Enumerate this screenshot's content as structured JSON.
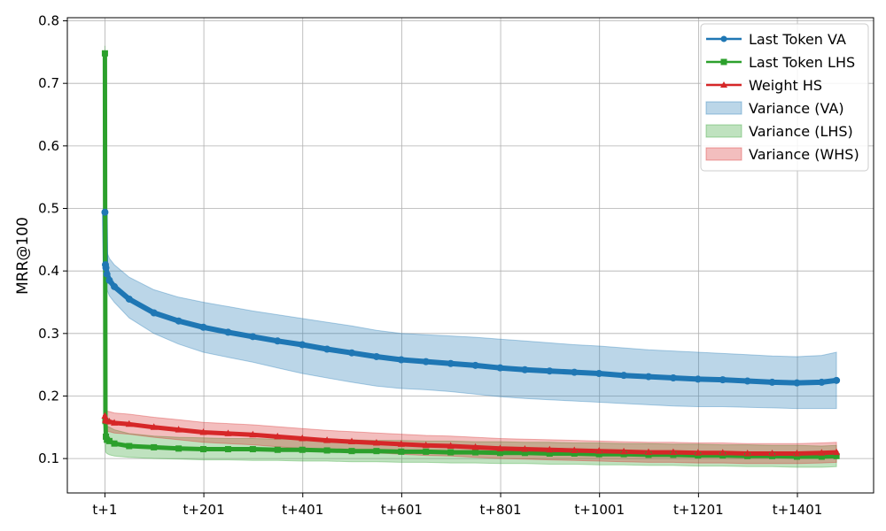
{
  "chart_data": {
    "type": "line",
    "title": "",
    "xlabel": "",
    "ylabel": "MRR@100",
    "x_ticks": [
      "t+1",
      "t+201",
      "t+401",
      "t+601",
      "t+801",
      "t+1001",
      "t+1201",
      "t+1401"
    ],
    "x_tick_values": [
      1,
      201,
      401,
      601,
      801,
      1001,
      1201,
      1401
    ],
    "xlim": [
      -75,
      1555
    ],
    "ylim": [
      0.045,
      0.805
    ],
    "y_ticks": [
      0.1,
      0.2,
      0.3,
      0.4,
      0.5,
      0.6,
      0.7,
      0.8
    ],
    "grid": true,
    "legend_position": "top-right",
    "x": [
      1,
      2,
      3,
      5,
      10,
      20,
      50,
      100,
      150,
      200,
      250,
      300,
      350,
      400,
      450,
      500,
      550,
      600,
      650,
      700,
      750,
      800,
      850,
      900,
      950,
      1000,
      1050,
      1100,
      1150,
      1200,
      1250,
      1300,
      1350,
      1400,
      1450,
      1480
    ],
    "series": [
      {
        "name": "Last Token VA",
        "color": "#1f77b4",
        "marker": "circle",
        "values": [
          0.494,
          0.41,
          0.405,
          0.395,
          0.385,
          0.375,
          0.355,
          0.333,
          0.32,
          0.31,
          0.302,
          0.295,
          0.288,
          0.282,
          0.275,
          0.269,
          0.263,
          0.258,
          0.255,
          0.252,
          0.249,
          0.245,
          0.242,
          0.24,
          0.238,
          0.236,
          0.233,
          0.231,
          0.229,
          0.227,
          0.226,
          0.224,
          0.222,
          0.221,
          0.222,
          0.225
        ],
        "band_name": "Variance (VA)",
        "band_color": "#1f77b4",
        "band_lower": [
          0.46,
          0.39,
          0.385,
          0.37,
          0.36,
          0.35,
          0.325,
          0.3,
          0.283,
          0.27,
          0.262,
          0.254,
          0.245,
          0.236,
          0.229,
          0.222,
          0.216,
          0.212,
          0.21,
          0.207,
          0.203,
          0.199,
          0.196,
          0.194,
          0.192,
          0.19,
          0.188,
          0.186,
          0.184,
          0.183,
          0.183,
          0.182,
          0.181,
          0.18,
          0.18,
          0.18
        ],
        "band_upper": [
          0.5,
          0.45,
          0.44,
          0.43,
          0.42,
          0.41,
          0.39,
          0.37,
          0.358,
          0.35,
          0.343,
          0.336,
          0.33,
          0.324,
          0.318,
          0.312,
          0.305,
          0.3,
          0.298,
          0.296,
          0.294,
          0.291,
          0.288,
          0.285,
          0.282,
          0.28,
          0.277,
          0.274,
          0.272,
          0.27,
          0.268,
          0.266,
          0.264,
          0.263,
          0.265,
          0.27
        ]
      },
      {
        "name": "Last Token LHS",
        "color": "#2ca02c",
        "marker": "square",
        "values": [
          0.748,
          0.16,
          0.135,
          0.13,
          0.128,
          0.124,
          0.12,
          0.118,
          0.116,
          0.115,
          0.115,
          0.115,
          0.114,
          0.114,
          0.113,
          0.112,
          0.112,
          0.111,
          0.111,
          0.11,
          0.11,
          0.109,
          0.109,
          0.108,
          0.108,
          0.107,
          0.107,
          0.106,
          0.106,
          0.105,
          0.105,
          0.104,
          0.104,
          0.103,
          0.103,
          0.104
        ],
        "band_name": "Variance (LHS)",
        "band_color": "#2ca02c",
        "band_lower": [
          0.73,
          0.12,
          0.11,
          0.108,
          0.106,
          0.104,
          0.102,
          0.1,
          0.099,
          0.098,
          0.098,
          0.097,
          0.097,
          0.096,
          0.096,
          0.095,
          0.095,
          0.094,
          0.094,
          0.093,
          0.093,
          0.092,
          0.092,
          0.091,
          0.091,
          0.09,
          0.09,
          0.089,
          0.089,
          0.088,
          0.088,
          0.087,
          0.087,
          0.086,
          0.086,
          0.087
        ],
        "band_upper": [
          0.76,
          0.2,
          0.16,
          0.152,
          0.15,
          0.146,
          0.14,
          0.136,
          0.134,
          0.133,
          0.132,
          0.132,
          0.131,
          0.131,
          0.13,
          0.13,
          0.129,
          0.129,
          0.128,
          0.128,
          0.127,
          0.127,
          0.126,
          0.126,
          0.125,
          0.125,
          0.124,
          0.124,
          0.123,
          0.123,
          0.122,
          0.122,
          0.121,
          0.121,
          0.12,
          0.121
        ]
      },
      {
        "name": "Weight HS",
        "color": "#d62728",
        "marker": "triangle",
        "values": [
          0.168,
          0.162,
          0.161,
          0.16,
          0.159,
          0.157,
          0.155,
          0.15,
          0.146,
          0.142,
          0.14,
          0.138,
          0.135,
          0.132,
          0.129,
          0.127,
          0.125,
          0.123,
          0.121,
          0.12,
          0.118,
          0.116,
          0.115,
          0.114,
          0.113,
          0.112,
          0.111,
          0.11,
          0.11,
          0.109,
          0.109,
          0.108,
          0.108,
          0.108,
          0.109,
          0.11
        ],
        "band_name": "Variance (WHS)",
        "band_color": "#d62728",
        "band_lower": [
          0.15,
          0.146,
          0.145,
          0.144,
          0.143,
          0.141,
          0.139,
          0.134,
          0.13,
          0.126,
          0.124,
          0.122,
          0.119,
          0.116,
          0.113,
          0.111,
          0.109,
          0.107,
          0.105,
          0.104,
          0.102,
          0.1,
          0.099,
          0.098,
          0.097,
          0.096,
          0.095,
          0.094,
          0.094,
          0.093,
          0.093,
          0.092,
          0.092,
          0.092,
          0.093,
          0.094
        ],
        "band_upper": [
          0.186,
          0.178,
          0.177,
          0.176,
          0.175,
          0.173,
          0.171,
          0.166,
          0.162,
          0.158,
          0.156,
          0.154,
          0.151,
          0.148,
          0.145,
          0.143,
          0.141,
          0.139,
          0.137,
          0.136,
          0.134,
          0.132,
          0.131,
          0.13,
          0.129,
          0.128,
          0.127,
          0.126,
          0.126,
          0.125,
          0.125,
          0.124,
          0.124,
          0.124,
          0.125,
          0.126
        ]
      }
    ]
  }
}
